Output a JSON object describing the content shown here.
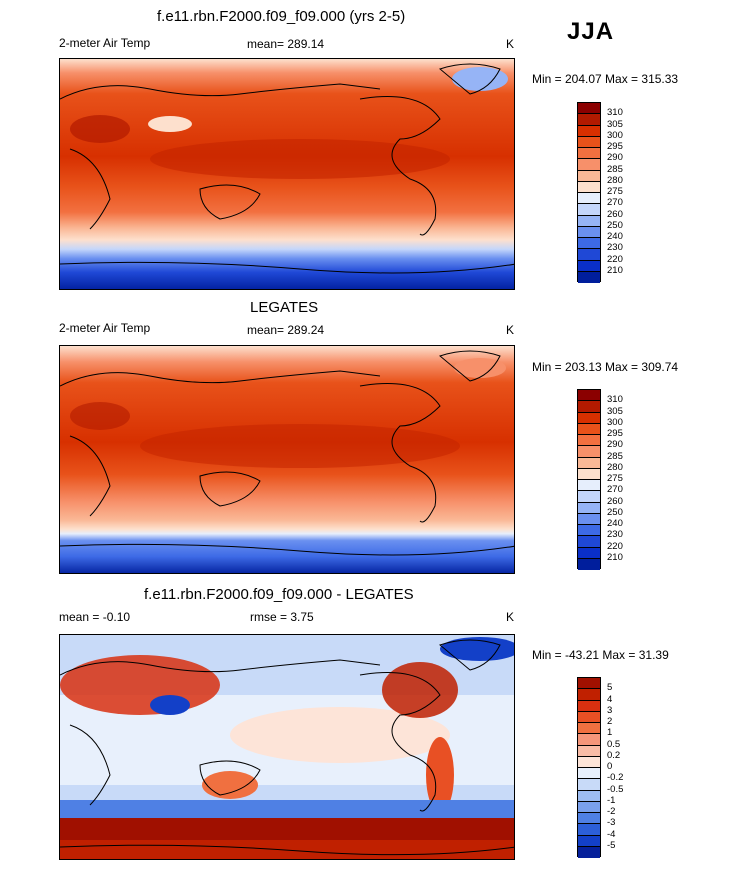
{
  "season": "JJA",
  "panels": [
    {
      "title": "f.e11.rbn.F2000.f09_f09.000 (yrs 2-5)",
      "variable": "2-meter Air Temp",
      "stat": "mean= 289.14",
      "units": "K",
      "minmax": "Min = 204.07 Max = 315.33"
    },
    {
      "title": "LEGATES",
      "variable": "2-meter Air Temp",
      "stat": "mean= 289.24",
      "units": "K",
      "minmax": "Min = 203.13 Max = 309.74"
    },
    {
      "title": "f.e11.rbn.F2000.f09_f09.000 - LEGATES",
      "variable": "mean =  -0.10",
      "stat": "rmse =   3.75",
      "units": "K",
      "minmax": "Min = -43.21 Max =  31.39"
    }
  ],
  "temp_colorbar": {
    "labels": [
      "310",
      "305",
      "300",
      "295",
      "290",
      "285",
      "280",
      "275",
      "270",
      "260",
      "250",
      "240",
      "230",
      "220",
      "210"
    ],
    "colors": [
      "#8b0000",
      "#b21a00",
      "#d73000",
      "#e8521a",
      "#f27040",
      "#f7906a",
      "#fab896",
      "#fde0cd",
      "#e6eefc",
      "#c4d6fb",
      "#96b4f6",
      "#6a90f0",
      "#3d6ae6",
      "#1f48d6",
      "#0a2fc8",
      "#001e9c"
    ]
  },
  "diff_colorbar": {
    "labels": [
      "5",
      "4",
      "3",
      "2",
      "1",
      "0.5",
      "0.2",
      "0",
      "-0.2",
      "-0.5",
      "-1",
      "-2",
      "-3",
      "-4",
      "-5"
    ],
    "colors": [
      "#a01000",
      "#c02000",
      "#d83010",
      "#e85024",
      "#f07040",
      "#f5967a",
      "#f9bca6",
      "#fde4d8",
      "#e8f0fc",
      "#c8daf8",
      "#9ebdf2",
      "#7aa0ec",
      "#4f80e4",
      "#2c5fd8",
      "#1340c8",
      "#06209a"
    ]
  }
}
